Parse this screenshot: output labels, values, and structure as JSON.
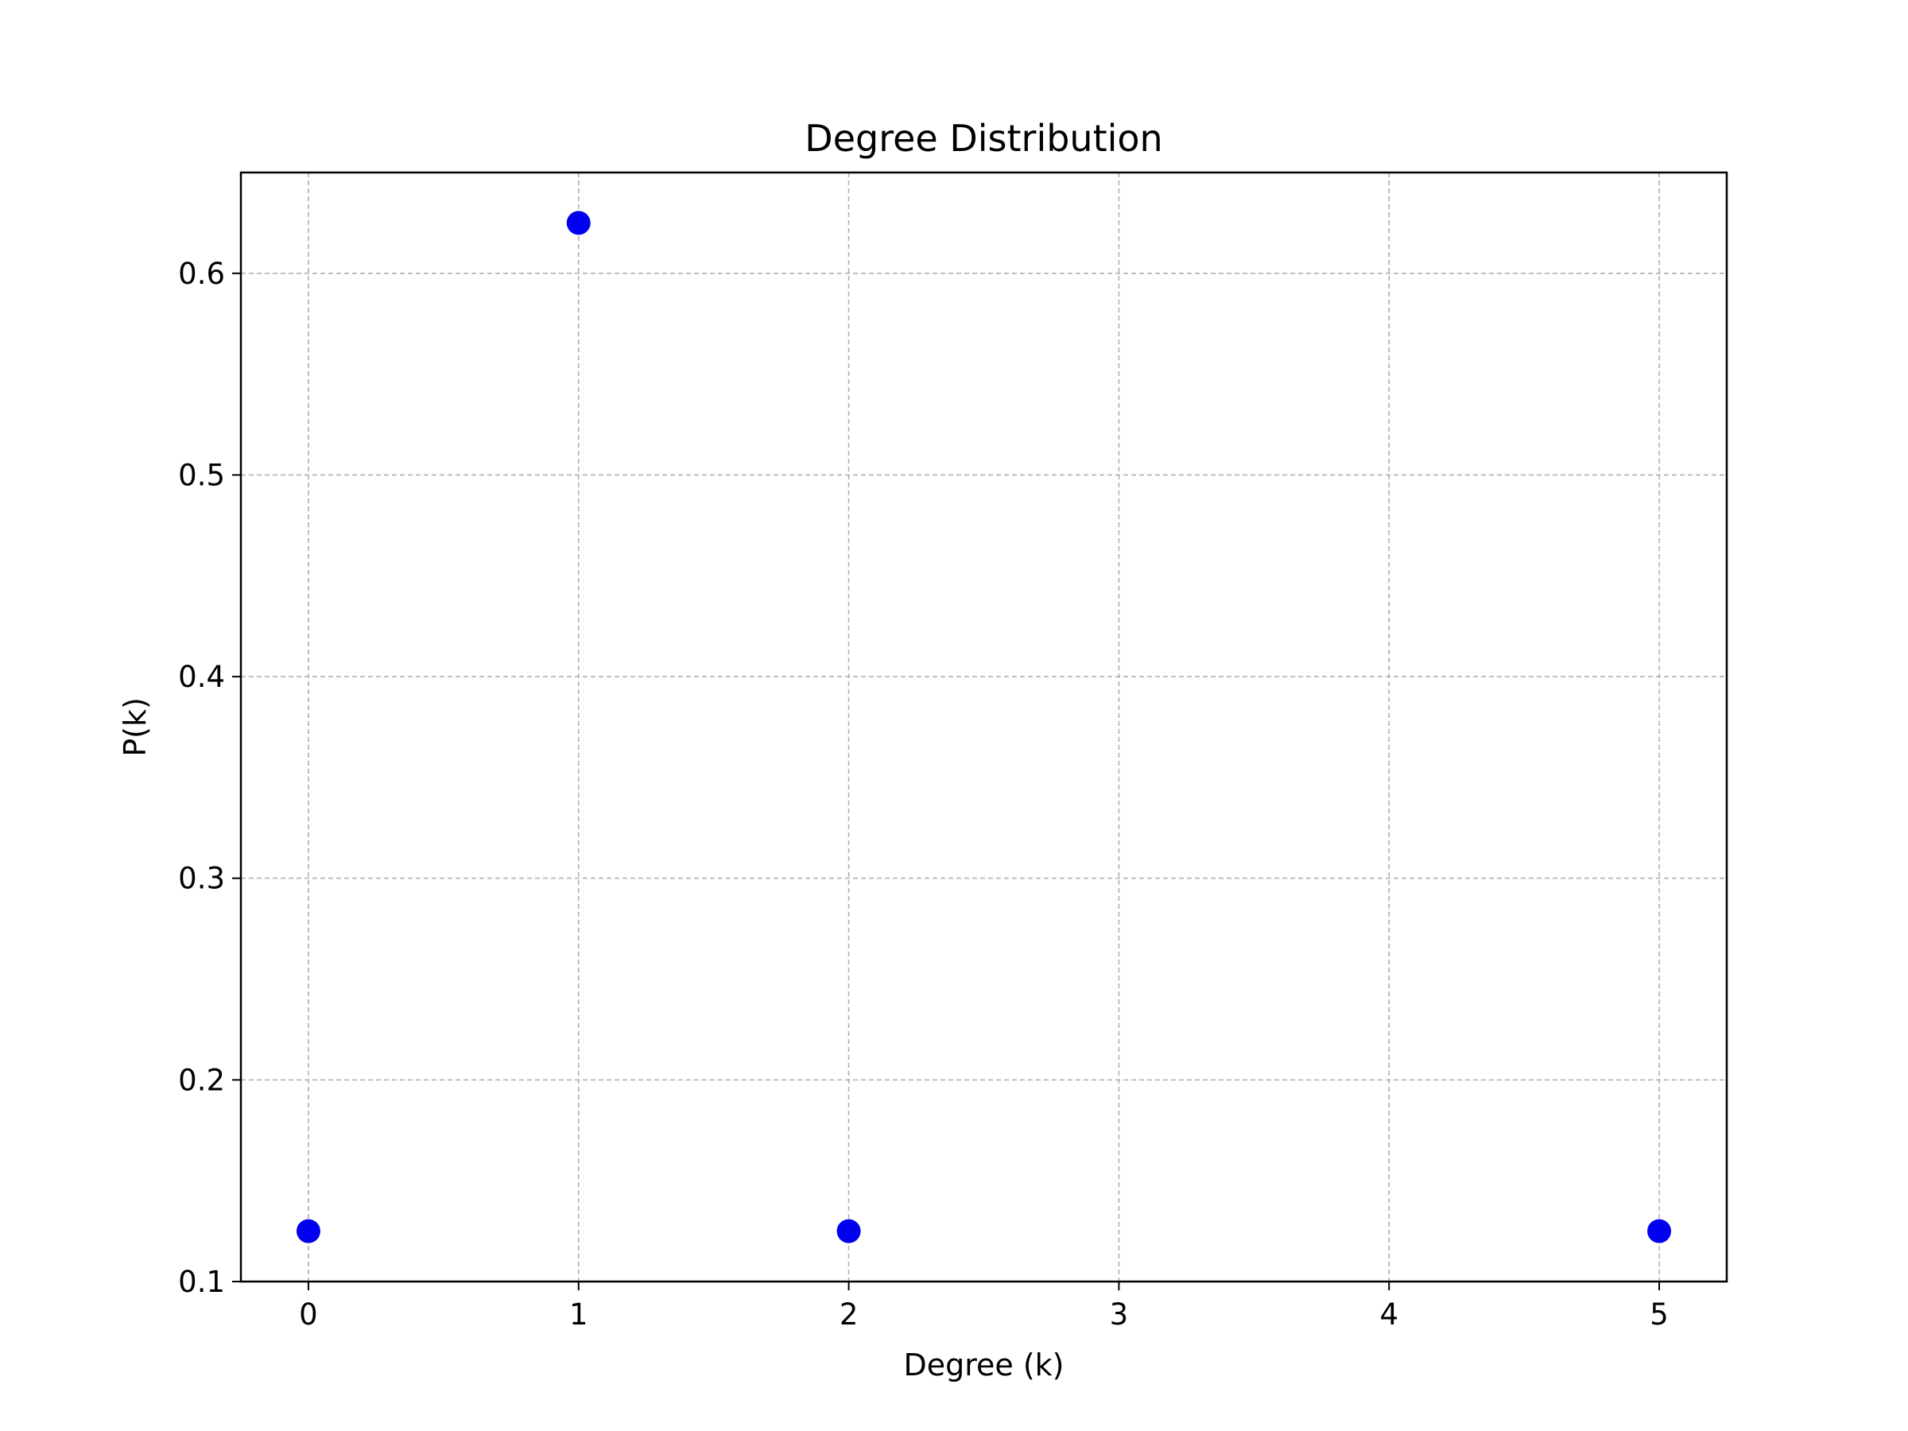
{
  "chart_data": {
    "type": "scatter",
    "title": "Degree Distribution",
    "xlabel": "Degree (k)",
    "ylabel": "P(k)",
    "xlim": [
      -0.25,
      5.25
    ],
    "ylim": [
      0.1,
      0.65
    ],
    "xticks": [
      0,
      1,
      2,
      3,
      4,
      5
    ],
    "xtick_labels": [
      "0",
      "1",
      "2",
      "3",
      "4",
      "5"
    ],
    "yticks": [
      0.1,
      0.2,
      0.3,
      0.4,
      0.5,
      0.6
    ],
    "ytick_labels": [
      "0.1",
      "0.2",
      "0.3",
      "0.4",
      "0.5",
      "0.6"
    ],
    "grid": true,
    "points": [
      {
        "x": 0,
        "y": 0.125
      },
      {
        "x": 1,
        "y": 0.625
      },
      {
        "x": 2,
        "y": 0.125
      },
      {
        "x": 5,
        "y": 0.125
      }
    ],
    "colors": {
      "marker": "#0000ee",
      "grid": "#b0b0b0",
      "axes": "#000000"
    }
  }
}
